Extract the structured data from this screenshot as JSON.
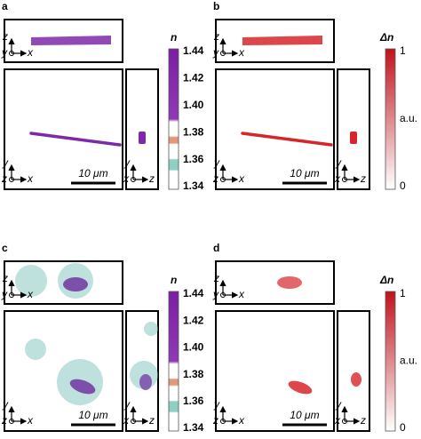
{
  "panels": [
    {
      "label": "a",
      "scale_bar": "10 μm",
      "top_axes": [
        "z",
        "y",
        "x"
      ],
      "main_axes": [
        "y",
        "z",
        "x"
      ],
      "side_axes": [
        "y",
        "x",
        "z"
      ],
      "colorbar": {
        "title": "n",
        "ticks": [
          "1.44",
          "1.42",
          "1.40",
          "1.38",
          "1.36",
          "1.34"
        ]
      }
    },
    {
      "label": "b",
      "scale_bar": "10 μm",
      "top_axes": [
        "z",
        "y",
        "x"
      ],
      "main_axes": [
        "y",
        "z",
        "x"
      ],
      "side_axes": [
        "y",
        "x",
        "z"
      ],
      "colorbar": {
        "title": "Δn",
        "ticks": [
          "1",
          "a.u.",
          "0"
        ]
      }
    },
    {
      "label": "c",
      "scale_bar": "10 μm",
      "top_axes": [
        "z",
        "y",
        "x"
      ],
      "main_axes": [
        "y",
        "z",
        "x"
      ],
      "side_axes": [
        "y",
        "x",
        "z"
      ],
      "colorbar": {
        "title": "n",
        "ticks": [
          "1.44",
          "1.42",
          "1.40",
          "1.38",
          "1.36",
          "1.34"
        ]
      }
    },
    {
      "label": "d",
      "scale_bar": "10 μm",
      "top_axes": [
        "z",
        "y",
        "x"
      ],
      "main_axes": [
        "y",
        "z",
        "x"
      ],
      "side_axes": [
        "y",
        "x",
        "z"
      ],
      "colorbar": {
        "title": "Δn",
        "ticks": [
          "1",
          "a.u.",
          "0"
        ]
      }
    }
  ]
}
